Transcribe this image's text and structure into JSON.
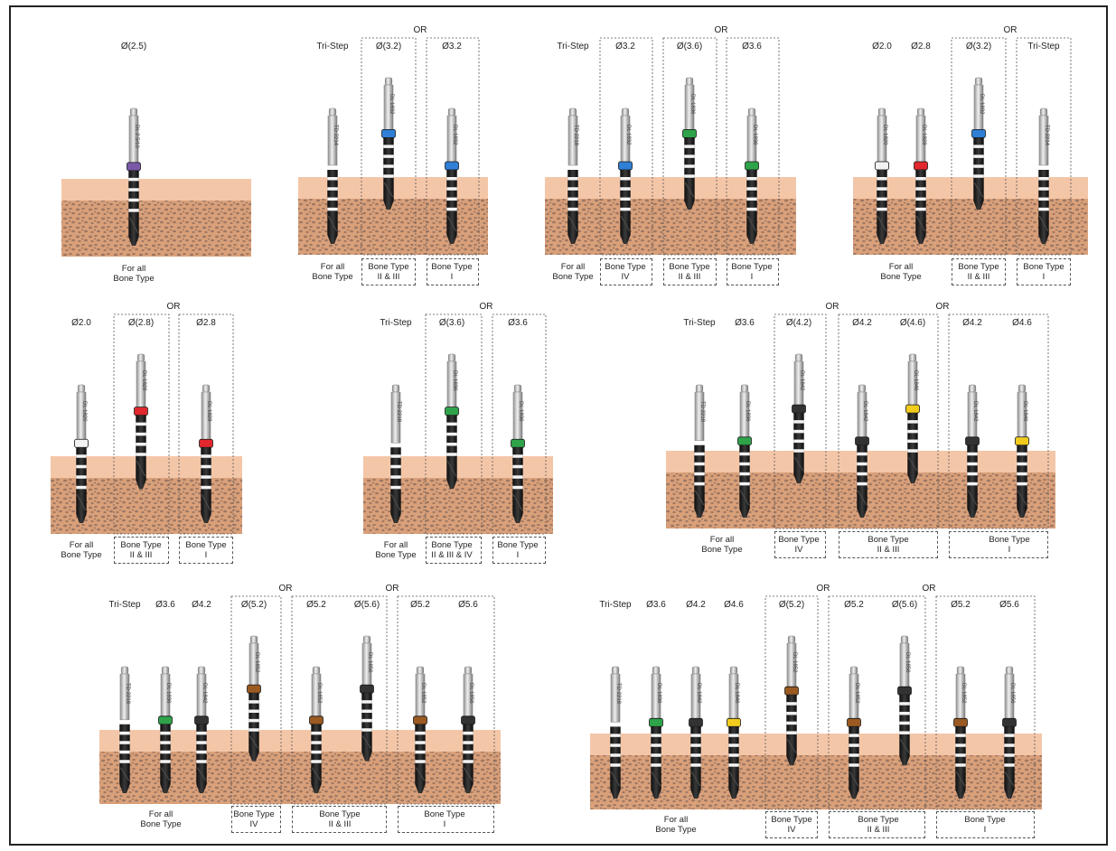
{
  "colors": {
    "soft_tissue": "#f4c6a8",
    "bone": "#d9a07a",
    "bone_dots": "#8a6a5a",
    "shank": "#bdbdbd",
    "drill": "#1b1b1b",
    "band_blue": "#2f7fd6",
    "band_green": "#2fa34a",
    "band_red": "#e0282e",
    "band_yellow": "#f1cc1d",
    "band_brown": "#9a5a22",
    "band_purple": "#7a5aa8",
    "band_black": "#1b1b1b",
    "band_white": "#f2f2f2"
  },
  "panels": [
    {
      "id": "p1",
      "ors": [],
      "drills": [
        {
          "top": "Ø(2.5)",
          "engr": "DL 2.5/10",
          "band": "purple",
          "len": 1.0
        }
      ],
      "foot": [
        {
          "text": "For all\nBone Type",
          "type": "plain"
        }
      ]
    },
    {
      "id": "p2",
      "ors": [
        "OR"
      ],
      "drills": [
        {
          "top": "Tri-Step",
          "engr": "TD 2214",
          "band": "none",
          "len": 1.0
        },
        {
          "top": "Ø(3.2)",
          "engr": "DL 1832",
          "band": "blue",
          "len": 0.7
        },
        {
          "top": "Ø3.2",
          "engr": "DL 1832",
          "band": "blue",
          "len": 1.0
        }
      ],
      "foot": [
        {
          "text": "For all\nBone Type",
          "type": "plain"
        },
        {
          "text": "Bone Type\nII & III",
          "type": "box"
        },
        {
          "text": "Bone Type\nI",
          "type": "box"
        }
      ]
    },
    {
      "id": "p3",
      "ors": [
        "OR"
      ],
      "drills": [
        {
          "top": "Tri-Step",
          "engr": "TD 2218",
          "band": "none",
          "len": 1.0
        },
        {
          "top": "Ø3.2",
          "engr": "DL 1832",
          "band": "blue",
          "len": 1.0
        },
        {
          "top": "Ø(3.6)",
          "engr": "DL 1836",
          "band": "green",
          "len": 0.7
        },
        {
          "top": "Ø3.6",
          "engr": "DL 1836",
          "band": "green",
          "len": 1.0
        }
      ],
      "foot": [
        {
          "text": "For all\nBone Type",
          "type": "plain"
        },
        {
          "text": "Bone Type\nIV",
          "type": "box"
        },
        {
          "text": "Bone Type\nII & III",
          "type": "box"
        },
        {
          "text": "Bone Type\nI",
          "type": "box"
        }
      ]
    },
    {
      "id": "p4",
      "ors": [
        "OR"
      ],
      "drills": [
        {
          "top": "Ø2.0",
          "engr": "DL 1820",
          "band": "white",
          "len": 1.0
        },
        {
          "top": "Ø2.8",
          "engr": "DL 1828",
          "band": "red",
          "len": 1.0
        },
        {
          "top": "Ø(3.2)",
          "engr": "DL 1832",
          "band": "blue",
          "len": 0.7
        },
        {
          "top": "Tri-Step",
          "engr": "TD 2214",
          "band": "none",
          "len": 1.0
        }
      ],
      "foot": [
        {
          "text": "For all\nBone Type",
          "type": "plain"
        },
        {
          "text": "Bone Type\nII & III",
          "type": "box"
        },
        {
          "text": "Bone Type\nI",
          "type": "box"
        }
      ]
    },
    {
      "id": "p5",
      "ors": [
        "OR"
      ],
      "drills": [
        {
          "top": "Ø2.0",
          "engr": "DL 1820",
          "band": "white",
          "len": 1.0
        },
        {
          "top": "Ø(2.8)",
          "engr": "DL 1828",
          "band": "red",
          "len": 0.7
        },
        {
          "top": "Ø2.8",
          "engr": "DL 1828",
          "band": "red",
          "len": 1.0
        }
      ],
      "foot": [
        {
          "text": "For all\nBone Type",
          "type": "plain"
        },
        {
          "text": "Bone Type\nII & III",
          "type": "box"
        },
        {
          "text": "Bone Type\nI",
          "type": "box"
        }
      ]
    },
    {
      "id": "p6",
      "ors": [
        "OR"
      ],
      "drills": [
        {
          "top": "Tri-Step",
          "engr": "TD 2218",
          "band": "none",
          "len": 1.0
        },
        {
          "top": "Ø(3.6)",
          "engr": "DL 1836",
          "band": "green",
          "len": 0.7
        },
        {
          "top": "Ø3.6",
          "engr": "DL 1836",
          "band": "green",
          "len": 1.0
        }
      ],
      "foot": [
        {
          "text": "For all\nBone Type",
          "type": "plain"
        },
        {
          "text": "Bone Type\nII & III & IV",
          "type": "box"
        },
        {
          "text": "Bone Type\nI",
          "type": "box"
        }
      ]
    },
    {
      "id": "p7",
      "ors": [
        "OR",
        "OR"
      ],
      "drills": [
        {
          "top": "Tri-Step",
          "engr": "TD 2218",
          "band": "none",
          "len": 1.0
        },
        {
          "top": "Ø3.6",
          "engr": "DL 1836",
          "band": "green",
          "len": 1.0
        },
        {
          "top": "Ø(4.2)",
          "engr": "DL 1842",
          "band": "black",
          "len": 0.7
        },
        {
          "top": "Ø4.2",
          "engr": "DL 1842",
          "band": "black",
          "len": 1.0
        },
        {
          "top": "Ø(4.6)",
          "engr": "DL 1846",
          "band": "yellow",
          "len": 0.7
        },
        {
          "top": "Ø4.2",
          "engr": "DL 1842",
          "band": "black",
          "len": 1.0
        },
        {
          "top": "Ø4.6",
          "engr": "DL 1846",
          "band": "yellow",
          "len": 1.0
        }
      ],
      "foot": [
        {
          "text": "For all\nBone Type",
          "type": "plain"
        },
        {
          "text": "Bone Type\nIV",
          "type": "box"
        },
        {
          "text": "Bone Type\nII & III",
          "type": "box"
        },
        {
          "text": "Bone Type\nI",
          "type": "box"
        }
      ]
    },
    {
      "id": "p8",
      "ors": [
        "OR",
        "OR"
      ],
      "drills": [
        {
          "top": "Tri-Step",
          "engr": "TD 2218",
          "band": "none",
          "len": 1.0
        },
        {
          "top": "Ø3.6",
          "engr": "DL 1836",
          "band": "green",
          "len": 1.0
        },
        {
          "top": "Ø4.2",
          "engr": "DL 1842",
          "band": "black",
          "len": 1.0
        },
        {
          "top": "Ø(5.2)",
          "engr": "DL 1852",
          "band": "brown",
          "len": 0.7
        },
        {
          "top": "Ø5.2",
          "engr": "DL 1852",
          "band": "brown",
          "len": 1.0
        },
        {
          "top": "Ø(5.6)",
          "engr": "DL 1856",
          "band": "black",
          "len": 0.7
        },
        {
          "top": "Ø5.2",
          "engr": "DL 1852",
          "band": "brown",
          "len": 1.0
        },
        {
          "top": "Ø5.6",
          "engr": "DL 1856",
          "band": "black",
          "len": 1.0
        }
      ],
      "foot": [
        {
          "text": "For all\nBone Type",
          "type": "plain"
        },
        {
          "text": "Bone Type\nIV",
          "type": "box"
        },
        {
          "text": "Bone Type\nII & III",
          "type": "box"
        },
        {
          "text": "Bone Type\nI",
          "type": "box"
        }
      ]
    },
    {
      "id": "p9",
      "ors": [
        "OR",
        "OR"
      ],
      "drills": [
        {
          "top": "Tri-Step",
          "engr": "TD 2218",
          "band": "none",
          "len": 1.0
        },
        {
          "top": "Ø3.6",
          "engr": "DL 1836",
          "band": "green",
          "len": 1.0
        },
        {
          "top": "Ø4.2",
          "engr": "DL 1842",
          "band": "black",
          "len": 1.0
        },
        {
          "top": "Ø4.6",
          "engr": "DL 1846",
          "band": "yellow",
          "len": 1.0
        },
        {
          "top": "Ø(5.2)",
          "engr": "DL 1852",
          "band": "brown",
          "len": 0.7
        },
        {
          "top": "Ø5.2",
          "engr": "DL 1852",
          "band": "brown",
          "len": 1.0
        },
        {
          "top": "Ø(5.6)",
          "engr": "DL 1856",
          "band": "black",
          "len": 0.7
        },
        {
          "top": "Ø5.2",
          "engr": "DL 1852",
          "band": "brown",
          "len": 1.0
        },
        {
          "top": "Ø5.6",
          "engr": "DL 1856",
          "band": "black",
          "len": 1.0
        }
      ],
      "foot": [
        {
          "text": "For all\nBone Type",
          "type": "plain"
        },
        {
          "text": "Bone Type\nIV",
          "type": "box"
        },
        {
          "text": "Bone Type\nII & III",
          "type": "box"
        },
        {
          "text": "Bone Type\nI",
          "type": "box"
        }
      ]
    }
  ]
}
